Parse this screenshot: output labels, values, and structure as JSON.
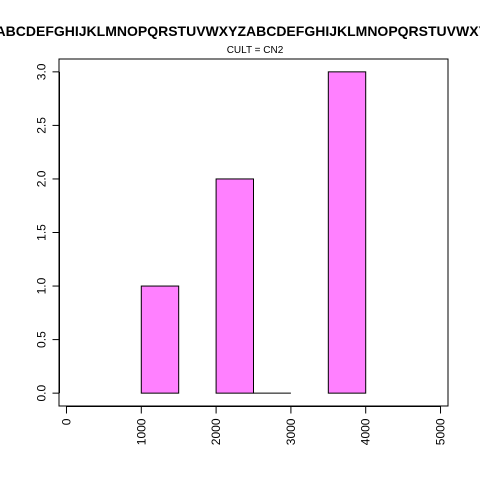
{
  "chart_data": {
    "type": "bar",
    "title": "ABCDEFGHIJKLMNOPQRSTUVWXYZABCDEFGHIJKLMNOPQRSTUVWXYZ",
    "subtitle": "CULT = CN2",
    "xlabel": "",
    "ylabel": "",
    "bar_color": "#ff80ff",
    "bars": [
      {
        "x0": 1000,
        "x1": 1500,
        "value": 1
      },
      {
        "x0": 2000,
        "x1": 2500,
        "value": 2
      },
      {
        "x0": 2500,
        "x1": 3000,
        "value": 0
      },
      {
        "x0": 3500,
        "x1": 4000,
        "value": 3
      }
    ],
    "xlim": [
      -100,
      5100
    ],
    "ylim": [
      -0.12,
      3.12
    ],
    "x_ticks": [
      0,
      1000,
      2000,
      3000,
      4000,
      5000
    ],
    "x_tick_labels": [
      "0",
      "1000",
      "2000",
      "3000",
      "4000",
      "5000"
    ],
    "y_ticks": [
      0,
      0.5,
      1,
      1.5,
      2,
      2.5,
      3
    ],
    "y_tick_labels": [
      "0.0",
      "0.5",
      "1.0",
      "1.5",
      "2.0",
      "2.5",
      "3.0"
    ],
    "grid": false
  }
}
